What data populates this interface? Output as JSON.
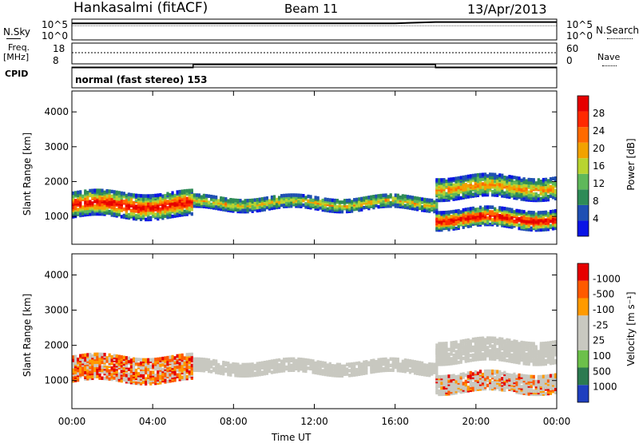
{
  "header": {
    "station": "Hankasalmi (fitACF)",
    "beam": "Beam 11",
    "date": "13/Apr/2013"
  },
  "noise_panel": {
    "left_label": "N.Sky",
    "right_label": "N.Search",
    "left_ticks": [
      "10^5",
      "10^0"
    ],
    "right_ticks": [
      "10^5",
      "10^0"
    ]
  },
  "freq_panel": {
    "left_label_line1": "Freq.",
    "left_label_line2": "[MHz]",
    "right_label": "Nave",
    "left_ticks": [
      "18",
      "8"
    ],
    "right_ticks": [
      "60",
      "0"
    ]
  },
  "cpid": {
    "label": "CPID",
    "program": "normal (fast stereo) 153"
  },
  "colors": {
    "power_scale": [
      "#0a14e6",
      "#1f4fb3",
      "#2e8b57",
      "#5fb85a",
      "#b8d430",
      "#f2a200",
      "#ff6a00",
      "#ff2a00",
      "#e60000"
    ],
    "velocity_scale": [
      "#1f3fbf",
      "#2c7a50",
      "#6cc04a",
      "#c8c8c0",
      "#c8c8c0",
      "#ff9a00",
      "#ff5a00",
      "#e60000"
    ],
    "ground_scatter": "#c8c8c0"
  },
  "chart_data": [
    {
      "type": "line",
      "name": "noise",
      "x": [
        "00:00",
        "04:00",
        "08:00",
        "12:00",
        "16:00",
        "18:00",
        "20:00",
        "24:00"
      ],
      "series": [
        {
          "name": "N.Sky",
          "values": [
            10000,
            10000,
            10000,
            10000,
            10000,
            20000,
            20000,
            20000
          ]
        }
      ],
      "ylim": [
        1,
        100000
      ]
    },
    {
      "type": "line",
      "name": "frequency",
      "x": [
        "00:00",
        "06:00",
        "06:00",
        "18:00",
        "18:00",
        "24:00"
      ],
      "series": [
        {
          "name": "Freq.",
          "values": [
            10,
            10,
            11.5,
            11.5,
            10,
            10
          ]
        },
        {
          "name": "Nave",
          "values": [
            45,
            45,
            45,
            45,
            45,
            45
          ]
        }
      ],
      "ylim": [
        8,
        18
      ]
    },
    {
      "type": "heatmap",
      "name": "power",
      "xlabel": "",
      "ylabel": "Slant Range [km]",
      "x_ticks": [
        "00:00",
        "04:00",
        "08:00",
        "12:00",
        "16:00",
        "20:00",
        "00:00"
      ],
      "y_ticks": [
        1000,
        2000,
        3000,
        4000
      ],
      "ylim": [
        200,
        4600
      ],
      "colorbar": {
        "label": "Power [dB]",
        "ticks": [
          4,
          8,
          12,
          16,
          20,
          24,
          28
        ]
      },
      "bands": [
        {
          "start_hour": 0,
          "end_hour": 6,
          "center_km": 1300,
          "width_km": 700,
          "intensity": 0.9
        },
        {
          "start_hour": 6,
          "end_hour": 18,
          "center_km": 1350,
          "width_km": 350,
          "intensity": 0.5
        },
        {
          "start_hour": 18,
          "end_hour": 24,
          "center_km": 1800,
          "width_km": 600,
          "intensity": 0.6
        },
        {
          "start_hour": 18,
          "end_hour": 24,
          "center_km": 900,
          "width_km": 500,
          "intensity": 0.95
        }
      ]
    },
    {
      "type": "heatmap",
      "name": "velocity",
      "xlabel": "Time UT",
      "ylabel": "Slant Range [km]",
      "x_ticks": [
        "00:00",
        "04:00",
        "08:00",
        "12:00",
        "16:00",
        "20:00",
        "00:00"
      ],
      "y_ticks": [
        1000,
        2000,
        3000,
        4000
      ],
      "ylim": [
        200,
        4600
      ],
      "colorbar": {
        "label": "Velocity [m s⁻¹]",
        "ticks": [
          1000,
          500,
          100,
          25,
          -25,
          -100,
          -500,
          -1000
        ]
      },
      "bands": [
        {
          "start_hour": 0,
          "end_hour": 6,
          "center_km": 1300,
          "width_km": 700,
          "intensity": 0.7
        },
        {
          "start_hour": 6,
          "end_hour": 18,
          "center_km": 1350,
          "width_km": 350,
          "intensity": 0.0
        },
        {
          "start_hour": 18,
          "end_hour": 24,
          "center_km": 1800,
          "width_km": 600,
          "intensity": 0.0
        },
        {
          "start_hour": 18,
          "end_hour": 24,
          "center_km": 900,
          "width_km": 500,
          "intensity": 0.3
        }
      ]
    }
  ]
}
